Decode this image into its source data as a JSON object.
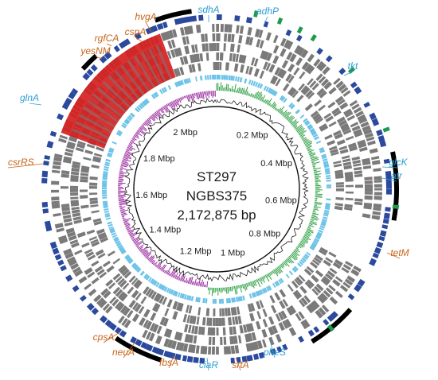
{
  "genome": {
    "strain": "ST297",
    "isolate": "NGBS375",
    "size_label": "2,172,875 bp",
    "total_bp": 2172875
  },
  "scale_labels": [
    "0.2 Mbp",
    "0.4 Mbp",
    "0.6 Mbp",
    "0.8 Mbp",
    "1 Mbp",
    "1.2 Mbp",
    "1.4 Mbp",
    "1.6 Mbp",
    "1.8 Mbp",
    "2 Mbp"
  ],
  "genes": [
    {
      "name": "hvgA",
      "color": "orange"
    },
    {
      "name": "cspA",
      "color": "orange"
    },
    {
      "name": "rgfCA",
      "color": "orange"
    },
    {
      "name": "yesNM",
      "color": "orange"
    },
    {
      "name": "sdhA",
      "color": "blue"
    },
    {
      "name": "adhP",
      "color": "blue"
    },
    {
      "name": "tkt",
      "color": "blue"
    },
    {
      "name": "glnA",
      "color": "blue"
    },
    {
      "name": "csrRS",
      "color": "orange"
    },
    {
      "name": "glcK",
      "color": "blue"
    },
    {
      "name": "atr",
      "color": "blue"
    },
    {
      "name": "tetM",
      "color": "orange"
    },
    {
      "name": "cpsA",
      "color": "orange"
    },
    {
      "name": "neuA",
      "color": "orange"
    },
    {
      "name": "fbsA",
      "color": "orange"
    },
    {
      "name": "ciaR",
      "color": "blue"
    },
    {
      "name": "srtA",
      "color": "orange"
    },
    {
      "name": "pheS",
      "color": "blue"
    }
  ],
  "colors": {
    "gene_orange": "#c8651b",
    "gene_blue": "#2e9fd6",
    "outer_ring": "#2b4a9e",
    "gray_ring": "#7a7a7a",
    "light_blue_ring": "#6cc3e8",
    "gc_skew_positive": "#2ea043",
    "gc_skew_negative": "#9b2fa0",
    "gc_content": "#222222",
    "red_block": "#d42020",
    "green_marks": "#1f9a4c",
    "black_arcs": "#000000"
  }
}
